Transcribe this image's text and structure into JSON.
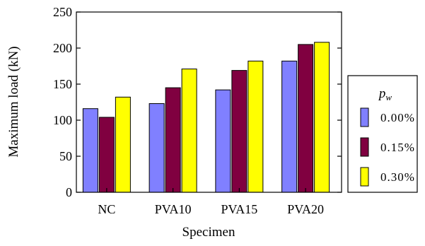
{
  "chart_data": {
    "type": "bar",
    "title": "",
    "xlabel": "Specimen",
    "ylabel": "Maximum load (kN)",
    "categories": [
      "NC",
      "PVA10",
      "PVA15",
      "PVA20"
    ],
    "ylim": [
      0,
      250
    ],
    "yticks": [
      0,
      50,
      100,
      150,
      200,
      250
    ],
    "grid": false,
    "legend_position": "right",
    "legend_title": "p",
    "legend_title_sub": "w",
    "series": [
      {
        "name": "0.00%",
        "color": "#8080ff",
        "values": [
          116,
          123,
          142,
          182
        ]
      },
      {
        "name": "0.15%",
        "color": "#800040",
        "values": [
          104,
          145,
          169,
          205
        ]
      },
      {
        "name": "0.30%",
        "color": "#ffff00",
        "values": [
          132,
          171,
          182,
          208
        ]
      }
    ]
  }
}
